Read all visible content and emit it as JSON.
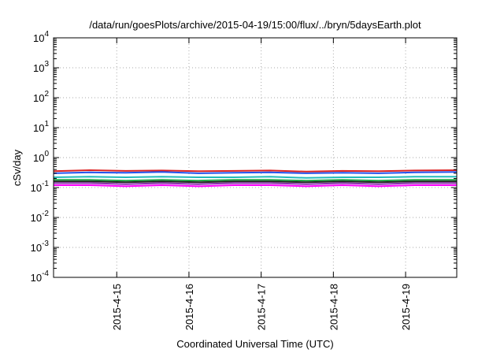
{
  "chart_data": {
    "type": "line",
    "title": "/data/run/goesPlots/archive/2015-04-19/15:00/flux/../bryn/5daysEarth.plot",
    "xlabel": "Coordinated Universal Time (UTC)",
    "ylabel": "cSv/day",
    "yscale": "log",
    "ylim": [
      0.0001,
      10000
    ],
    "y_ticks": [
      {
        "base": "10",
        "exp": "-4"
      },
      {
        "base": "10",
        "exp": "-3"
      },
      {
        "base": "10",
        "exp": "-2"
      },
      {
        "base": "10",
        "exp": "-1"
      },
      {
        "base": "10",
        "exp": "0"
      },
      {
        "base": "10",
        "exp": "1"
      },
      {
        "base": "10",
        "exp": "2"
      },
      {
        "base": "10",
        "exp": "3"
      },
      {
        "base": "10",
        "exp": "4"
      }
    ],
    "xlim": [
      "2015-04-14 03:00",
      "2015-04-19 17:00"
    ],
    "x_ticks": [
      "2015-4-15",
      "2015-4-16",
      "2015-4-17",
      "2015-4-18",
      "2015-4-19"
    ],
    "grid": true,
    "x": [
      "2015-04-14 03:00",
      "2015-04-14 15:00",
      "2015-04-15 03:00",
      "2015-04-15 15:00",
      "2015-04-16 03:00",
      "2015-04-16 15:00",
      "2015-04-17 03:00",
      "2015-04-17 15:00",
      "2015-04-18 03:00",
      "2015-04-18 15:00",
      "2015-04-19 03:00",
      "2015-04-19 17:00"
    ],
    "series": [
      {
        "color": "#dd2222",
        "values": [
          0.35,
          0.38,
          0.36,
          0.37,
          0.35,
          0.36,
          0.37,
          0.34,
          0.36,
          0.35,
          0.37,
          0.38
        ]
      },
      {
        "color": "#2255ee",
        "values": [
          0.3,
          0.32,
          0.31,
          0.33,
          0.3,
          0.31,
          0.32,
          0.3,
          0.31,
          0.3,
          0.32,
          0.33
        ]
      },
      {
        "color": "#22bbbb",
        "values": [
          0.22,
          0.23,
          0.22,
          0.23,
          0.22,
          0.22,
          0.23,
          0.21,
          0.22,
          0.22,
          0.23,
          0.23
        ]
      },
      {
        "color": "#22aa44",
        "values": [
          0.18,
          0.18,
          0.17,
          0.18,
          0.17,
          0.18,
          0.18,
          0.17,
          0.18,
          0.17,
          0.18,
          0.18
        ]
      },
      {
        "color": "#222222",
        "values": [
          0.16,
          0.16,
          0.15,
          0.16,
          0.15,
          0.16,
          0.16,
          0.15,
          0.16,
          0.15,
          0.16,
          0.16
        ]
      },
      {
        "color": "#8833aa",
        "values": [
          0.14,
          0.14,
          0.13,
          0.14,
          0.13,
          0.14,
          0.14,
          0.13,
          0.14,
          0.13,
          0.14,
          0.14
        ]
      },
      {
        "color": "#ff00ff",
        "values": [
          0.12,
          0.12,
          0.11,
          0.12,
          0.11,
          0.12,
          0.12,
          0.11,
          0.12,
          0.11,
          0.12,
          0.12
        ]
      }
    ]
  }
}
